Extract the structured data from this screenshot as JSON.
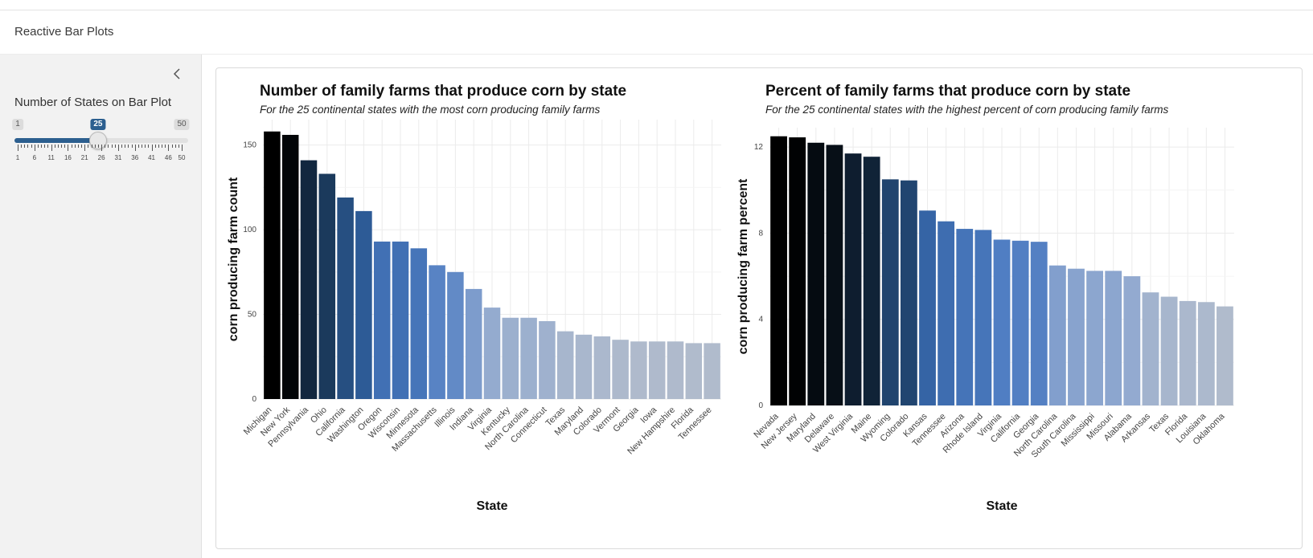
{
  "app": {
    "title": "Reactive Bar Plots"
  },
  "sidebar": {
    "collapse_icon": "chevron-left-icon",
    "slider": {
      "label": "Number of States on Bar Plot",
      "min": 1,
      "max": 50,
      "value": 25,
      "min_label": "1",
      "max_label": "50",
      "value_label": "25",
      "tick_labels": [
        "1",
        "6",
        "11",
        "16",
        "21",
        "26",
        "31",
        "36",
        "41",
        "46",
        "50"
      ],
      "accent_color": "#2c5f8f"
    }
  },
  "chart_data": [
    {
      "type": "bar",
      "title": "Number of family farms that produce corn by state",
      "subtitle": "For the 25 continental states with the most corn producing family farms",
      "xlabel": "State",
      "ylabel": "corn producing farm count",
      "ylim": [
        0,
        165
      ],
      "yticks": [
        0,
        50,
        100,
        150
      ],
      "categories": [
        "Michigan",
        "New York",
        "Pennsylvania",
        "Ohio",
        "California",
        "Washington",
        "Oregon",
        "Wisconsin",
        "Minnesota",
        "Massachusetts",
        "Illinois",
        "Indiana",
        "Virginia",
        "Kentucky",
        "North Carolina",
        "Connecticut",
        "Texas",
        "Maryland",
        "Colorado",
        "Vermont",
        "Georgia",
        "Iowa",
        "New Hampshire",
        "Florida",
        "Tennessee"
      ],
      "values": [
        158,
        156,
        141,
        133,
        119,
        111,
        93,
        93,
        89,
        79,
        75,
        65,
        54,
        48,
        48,
        46,
        40,
        38,
        37,
        35,
        34,
        34,
        34,
        33,
        33
      ],
      "grid": true,
      "color_scale": [
        "#000000",
        "#1b3a5c",
        "#2f5f9e",
        "#4d7cc2",
        "#8fa8d0",
        "#b0bbcc"
      ]
    },
    {
      "type": "bar",
      "title": "Percent of family farms that produce corn by state",
      "subtitle": "For the 25 continental states with the highest percent of corn producing family farms",
      "xlabel": "State",
      "ylabel": "corn producing farm percent",
      "ylim": [
        0,
        12.9
      ],
      "yticks": [
        0,
        4,
        8,
        12
      ],
      "categories": [
        "Nevada",
        "New Jersey",
        "Maryland",
        "Delaware",
        "West Virginia",
        "Maine",
        "Wyoming",
        "Colorado",
        "Kansas",
        "Tennessee",
        "Arizona",
        "Rhode Island",
        "Virginia",
        "California",
        "Georgia",
        "North Carolina",
        "South Carolina",
        "Mississippi",
        "Missouri",
        "Alabama",
        "Arkansas",
        "Texas",
        "Florida",
        "Louisiana",
        "Oklahoma"
      ],
      "values": [
        12.5,
        12.45,
        12.2,
        12.1,
        11.7,
        11.55,
        10.5,
        10.45,
        9.05,
        8.55,
        8.2,
        8.15,
        7.7,
        7.65,
        7.6,
        6.5,
        6.35,
        6.25,
        6.25,
        6.0,
        5.25,
        5.05,
        4.85,
        4.8,
        4.6
      ],
      "grid": true,
      "color_scale": [
        "#000000",
        "#1b3a5c",
        "#2f5f9e",
        "#4d7cc2",
        "#8fa8d0",
        "#b0bbcc"
      ]
    }
  ]
}
